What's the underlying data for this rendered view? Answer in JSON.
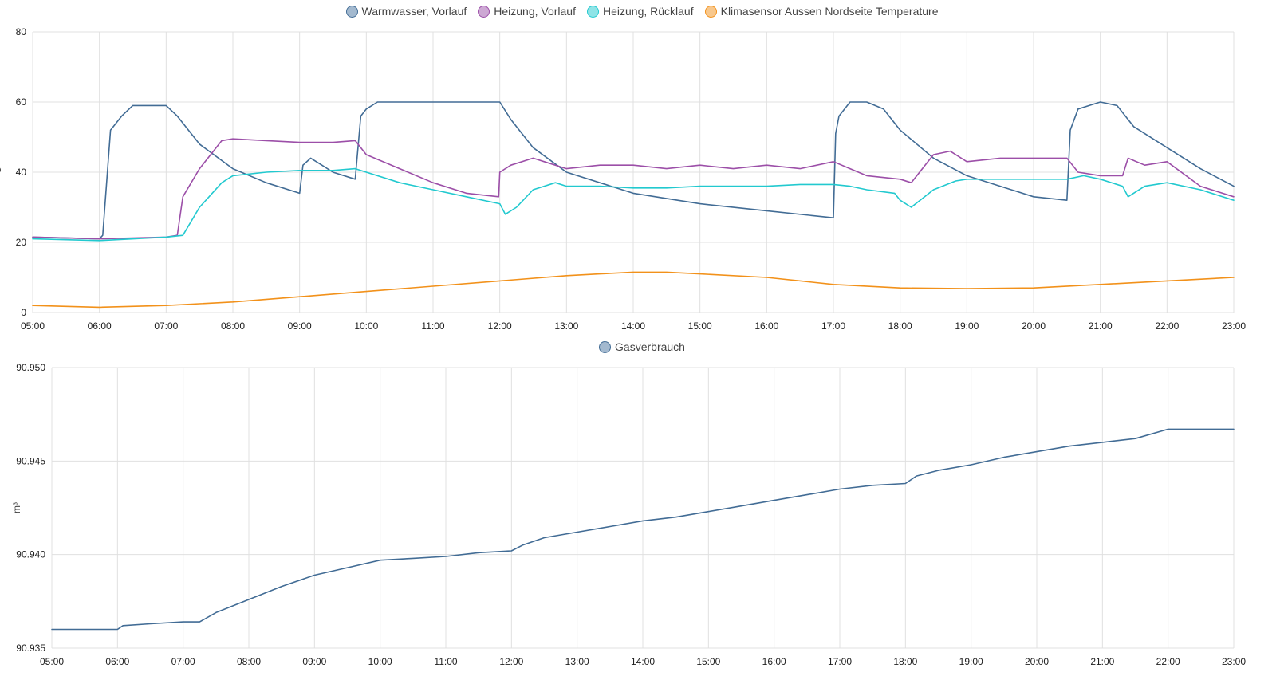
{
  "charts": [
    {
      "id": "temperatures",
      "unit": "°C",
      "legend": [
        {
          "name": "Warmwasser, Vorlauf",
          "color": "#426c95",
          "fill": "#a3b9cf"
        },
        {
          "name": "Heizung, Vorlauf",
          "color": "#9c4fa8",
          "fill": "#cda8d4"
        },
        {
          "name": "Heizung, Rücklauf",
          "color": "#22c9cf",
          "fill": "#8fe4e7"
        },
        {
          "name": "Klimasensor Aussen Nordseite Temperature",
          "color": "#f2911a",
          "fill": "#f8c88d"
        }
      ],
      "y_ticks": [
        "0",
        "20",
        "40",
        "60",
        "80"
      ],
      "x_ticks": [
        "05:00",
        "06:00",
        "07:00",
        "08:00",
        "09:00",
        "10:00",
        "11:00",
        "12:00",
        "13:00",
        "14:00",
        "15:00",
        "16:00",
        "17:00",
        "18:00",
        "19:00",
        "20:00",
        "21:00",
        "22:00",
        "23:00"
      ]
    },
    {
      "id": "gas",
      "unit": "m³",
      "legend": [
        {
          "name": "Gasverbrauch",
          "color": "#426c95",
          "fill": "#a3b9cf"
        }
      ],
      "y_ticks": [
        "90.935",
        "90.940",
        "90.945",
        "90.950"
      ],
      "x_ticks": [
        "05:00",
        "06:00",
        "07:00",
        "08:00",
        "09:00",
        "10:00",
        "11:00",
        "12:00",
        "13:00",
        "14:00",
        "15:00",
        "16:00",
        "17:00",
        "18:00",
        "19:00",
        "20:00",
        "21:00",
        "22:00",
        "23:00"
      ]
    }
  ],
  "chart_data": [
    {
      "type": "line",
      "title": "",
      "xlabel": "",
      "ylabel": "°C",
      "xlim": [
        "05:00",
        "23:00"
      ],
      "ylim": [
        0,
        80
      ],
      "grid": true,
      "legend_position": "top-center",
      "series": [
        {
          "name": "Warmwasser, Vorlauf",
          "x": [
            "05:00",
            "06:00",
            "06:03",
            "06:10",
            "06:20",
            "06:30",
            "06:40",
            "06:50",
            "07:00",
            "07:10",
            "07:30",
            "08:00",
            "08:30",
            "09:00",
            "09:03",
            "09:10",
            "09:20",
            "09:30",
            "09:50",
            "09:55",
            "10:00",
            "10:10",
            "10:30",
            "11:00",
            "11:30",
            "12:00",
            "12:10",
            "12:30",
            "13:00",
            "14:00",
            "15:00",
            "16:00",
            "17:00",
            "17:02",
            "17:05",
            "17:15",
            "17:30",
            "17:45",
            "18:00",
            "18:30",
            "19:00",
            "19:30",
            "20:00",
            "20:30",
            "20:33",
            "20:40",
            "20:50",
            "21:00",
            "21:15",
            "21:30",
            "22:00",
            "22:30",
            "23:00"
          ],
          "y": [
            21.5,
            21,
            22,
            52,
            56,
            59,
            59,
            59,
            59,
            56,
            48,
            41,
            37,
            34,
            42,
            44,
            42,
            40,
            38,
            56,
            58,
            60,
            60,
            60,
            60,
            60,
            55,
            47,
            40,
            34,
            31,
            29,
            27,
            51,
            56,
            60,
            60,
            58,
            52,
            44,
            39,
            36,
            33,
            32,
            52,
            58,
            59,
            60,
            59,
            53,
            47,
            41,
            36
          ]
        },
        {
          "name": "Heizung, Vorlauf",
          "x": [
            "05:00",
            "06:00",
            "07:00",
            "07:10",
            "07:15",
            "07:30",
            "07:50",
            "08:00",
            "08:30",
            "09:00",
            "09:30",
            "09:50",
            "10:00",
            "10:30",
            "11:00",
            "11:30",
            "11:59",
            "12:00",
            "12:10",
            "12:30",
            "12:40",
            "13:00",
            "13:30",
            "14:00",
            "14:30",
            "15:00",
            "15:30",
            "16:00",
            "16:30",
            "17:00",
            "17:15",
            "17:30",
            "18:00",
            "18:10",
            "18:30",
            "18:45",
            "19:00",
            "19:30",
            "20:00",
            "20:30",
            "20:40",
            "21:00",
            "21:20",
            "21:25",
            "21:40",
            "22:00",
            "22:30",
            "23:00"
          ],
          "y": [
            21.5,
            21,
            21.5,
            22,
            33,
            41,
            49,
            49.5,
            49,
            48.5,
            48.5,
            49,
            45,
            41,
            37,
            34,
            33,
            40,
            42,
            44,
            43,
            41,
            42,
            42,
            41,
            42,
            41,
            42,
            41,
            43,
            41,
            39,
            38,
            37,
            45,
            46,
            43,
            44,
            44,
            44,
            40,
            39,
            39,
            44,
            42,
            43,
            36,
            33
          ]
        },
        {
          "name": "Heizung, Rücklauf",
          "x": [
            "05:00",
            "06:00",
            "07:00",
            "07:15",
            "07:30",
            "07:50",
            "08:00",
            "08:30",
            "09:00",
            "09:30",
            "09:50",
            "10:00",
            "10:30",
            "11:00",
            "11:30",
            "12:00",
            "12:05",
            "12:15",
            "12:30",
            "12:50",
            "13:00",
            "13:30",
            "14:00",
            "14:30",
            "15:00",
            "15:30",
            "16:00",
            "16:30",
            "17:00",
            "17:15",
            "17:30",
            "17:55",
            "18:00",
            "18:10",
            "18:30",
            "18:50",
            "19:00",
            "19:30",
            "20:00",
            "20:30",
            "20:45",
            "21:00",
            "21:20",
            "21:25",
            "21:40",
            "22:00",
            "22:30",
            "23:00"
          ],
          "y": [
            21,
            20.5,
            21.5,
            22,
            30,
            37,
            39,
            40,
            40.5,
            40.5,
            41,
            40,
            37,
            35,
            33,
            31,
            28,
            30,
            35,
            37,
            36,
            36,
            35.5,
            35.5,
            36,
            36,
            36,
            36.5,
            36.5,
            36,
            35,
            34,
            32,
            30,
            35,
            37.5,
            38,
            38,
            38,
            38,
            39,
            38,
            36,
            33,
            36,
            37,
            35,
            32
          ]
        },
        {
          "name": "Klimasensor Aussen Nordseite Temperature",
          "x": [
            "05:00",
            "06:00",
            "07:00",
            "08:00",
            "09:00",
            "10:00",
            "11:00",
            "12:00",
            "13:00",
            "13:30",
            "14:00",
            "14:30",
            "15:00",
            "16:00",
            "17:00",
            "18:00",
            "19:00",
            "20:00",
            "21:00",
            "22:00",
            "23:00"
          ],
          "y": [
            2,
            1.5,
            2,
            3,
            4.5,
            6,
            7.5,
            9,
            10.5,
            11,
            11.5,
            11.5,
            11,
            10,
            8,
            7,
            6.8,
            7,
            8,
            9,
            10
          ]
        }
      ]
    },
    {
      "type": "line",
      "title": "",
      "xlabel": "",
      "ylabel": "m³",
      "xlim": [
        "05:00",
        "23:00"
      ],
      "ylim": [
        90.935,
        90.95
      ],
      "grid": true,
      "legend_position": "top-center",
      "series": [
        {
          "name": "Gasverbrauch",
          "x": [
            "05:00",
            "06:00",
            "06:05",
            "06:30",
            "07:00",
            "07:15",
            "07:30",
            "08:00",
            "08:30",
            "09:00",
            "09:30",
            "10:00",
            "10:30",
            "11:00",
            "11:30",
            "12:00",
            "12:10",
            "12:30",
            "13:00",
            "13:30",
            "14:00",
            "14:30",
            "15:00",
            "15:30",
            "16:00",
            "16:30",
            "17:00",
            "17:30",
            "18:00",
            "18:10",
            "18:30",
            "19:00",
            "19:30",
            "20:00",
            "20:30",
            "21:00",
            "21:30",
            "22:00",
            "22:30",
            "23:00"
          ],
          "y": [
            90.936,
            90.936,
            90.9362,
            90.9363,
            90.9364,
            90.9364,
            90.9369,
            90.9376,
            90.9383,
            90.9389,
            90.9393,
            90.9397,
            90.9398,
            90.9399,
            90.9401,
            90.9402,
            90.9405,
            90.9409,
            90.9412,
            90.9415,
            90.9418,
            90.942,
            90.9423,
            90.9426,
            90.9429,
            90.9432,
            90.9435,
            90.9437,
            90.9438,
            90.9442,
            90.9445,
            90.9448,
            90.9452,
            90.9455,
            90.9458,
            90.946,
            90.9462,
            90.9467,
            90.9467,
            90.9467
          ]
        }
      ]
    }
  ]
}
